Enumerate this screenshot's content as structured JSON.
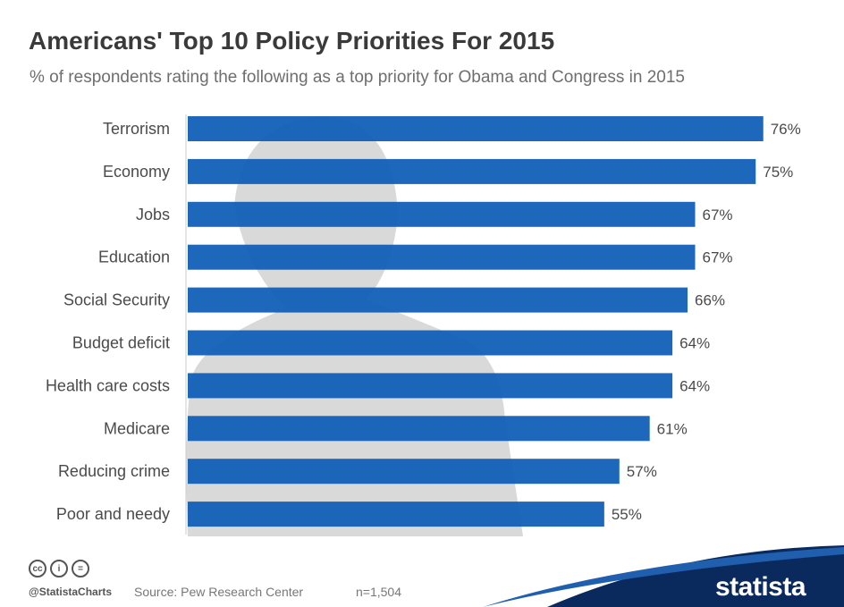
{
  "header": {
    "title": "Americans' Top 10 Policy Priorities For 2015",
    "subtitle": "% of respondents rating the following as a top priority for Obama and Congress in 2015"
  },
  "chart_data": {
    "type": "bar",
    "orientation": "horizontal",
    "title": "Americans' Top 10 Policy Priorities For 2015",
    "subtitle": "% of respondents rating the following as a top priority for Obama and Congress in 2015",
    "categories": [
      "Terrorism",
      "Economy",
      "Jobs",
      "Education",
      "Social Security",
      "Budget deficit",
      "Health care costs",
      "Medicare",
      "Reducing crime",
      "Poor and needy"
    ],
    "values": [
      76,
      75,
      67,
      67,
      66,
      64,
      64,
      61,
      57,
      55
    ],
    "value_labels": [
      "76%",
      "75%",
      "67%",
      "67%",
      "66%",
      "64%",
      "64%",
      "61%",
      "57%",
      "55%"
    ],
    "unit": "%",
    "xlim": [
      0,
      100
    ],
    "grid": false,
    "legend": "none",
    "bar_color": "#0d5cb6"
  },
  "footer": {
    "license_icons": [
      "cc-icon",
      "by-icon",
      "nd-icon"
    ],
    "license_glyphs": [
      "cc",
      "i",
      "="
    ],
    "handle": "@StatistaCharts",
    "source": "Source: Pew Research Center",
    "sample": "n=1,504",
    "brand": "statista",
    "brand_color": "#0a2a5e"
  }
}
